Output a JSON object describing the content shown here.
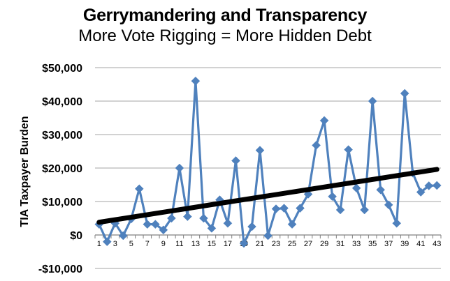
{
  "chart_data": {
    "type": "line",
    "title": "Gerrymandering and Transparency",
    "subtitle": "More Vote Rigging = More Hidden Debt",
    "ylabel": "TIA Taxpayer Burden",
    "xlabel": "",
    "ylim": [
      -10000,
      50000
    ],
    "y_ticks": [
      -10000,
      0,
      10000,
      20000,
      30000,
      40000,
      50000
    ],
    "y_tick_labels": [
      "-$10,000",
      "$0",
      "$10,000",
      "$20,000",
      "$30,000",
      "$40,000",
      "$50,000"
    ],
    "grid": "horizontal",
    "x": [
      1,
      2,
      3,
      4,
      5,
      6,
      7,
      8,
      9,
      10,
      11,
      12,
      13,
      14,
      15,
      16,
      17,
      18,
      19,
      20,
      21,
      22,
      23,
      24,
      25,
      26,
      27,
      28,
      29,
      30,
      31,
      32,
      33,
      34,
      35,
      36,
      37,
      38,
      39,
      40,
      41,
      42,
      43
    ],
    "x_tick_labels": [
      "1",
      "3",
      "5",
      "7",
      "9",
      "11",
      "13",
      "15",
      "17",
      "19",
      "21",
      "23",
      "25",
      "27",
      "29",
      "31",
      "33",
      "35",
      "37",
      "39",
      "41",
      "43"
    ],
    "series": [
      {
        "values": [
          3200,
          -2000,
          3500,
          -200,
          4800,
          13800,
          3200,
          3200,
          1500,
          5000,
          20000,
          5500,
          46000,
          5000,
          2000,
          10500,
          3500,
          22200,
          -2500,
          2500,
          25300,
          -200,
          7800,
          8000,
          3200,
          8000,
          12200,
          26800,
          34200,
          11500,
          7500,
          25500,
          14000,
          7500,
          40000,
          13500,
          9000,
          3500,
          42300,
          18500,
          12800,
          14700,
          14800
        ],
        "color": "#4F81BD",
        "marker": "diamond"
      }
    ],
    "trendline": {
      "start": [
        1,
        3800
      ],
      "end": [
        43,
        19600
      ],
      "color": "#000000"
    }
  }
}
